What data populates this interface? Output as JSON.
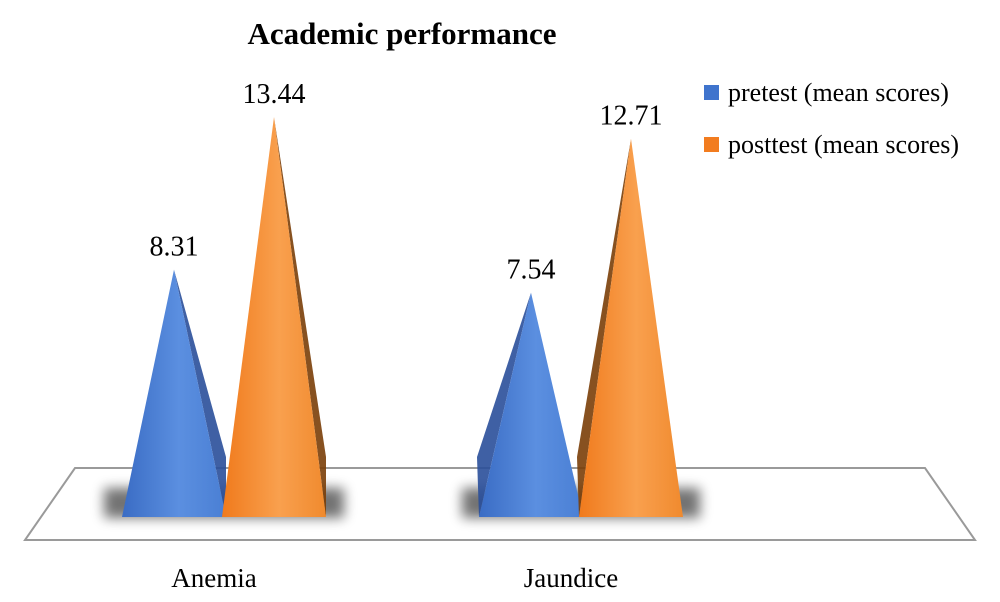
{
  "chart_data": {
    "type": "bar",
    "title": "Academic performance",
    "categories": [
      "Anemia",
      "Jaundice"
    ],
    "series": [
      {
        "name": "pretest (mean scores)",
        "values": [
          8.31,
          7.54
        ],
        "color": "#4a7fd4",
        "data_labels": [
          "8.31",
          "7.54"
        ]
      },
      {
        "name": "posttest (mean scores)",
        "values": [
          13.44,
          12.71
        ],
        "color": "#f08a2e",
        "data_labels": [
          "13.44",
          "12.71"
        ]
      }
    ],
    "legend_position": "top-right",
    "grid": false,
    "ylim": [
      0,
      15
    ]
  }
}
